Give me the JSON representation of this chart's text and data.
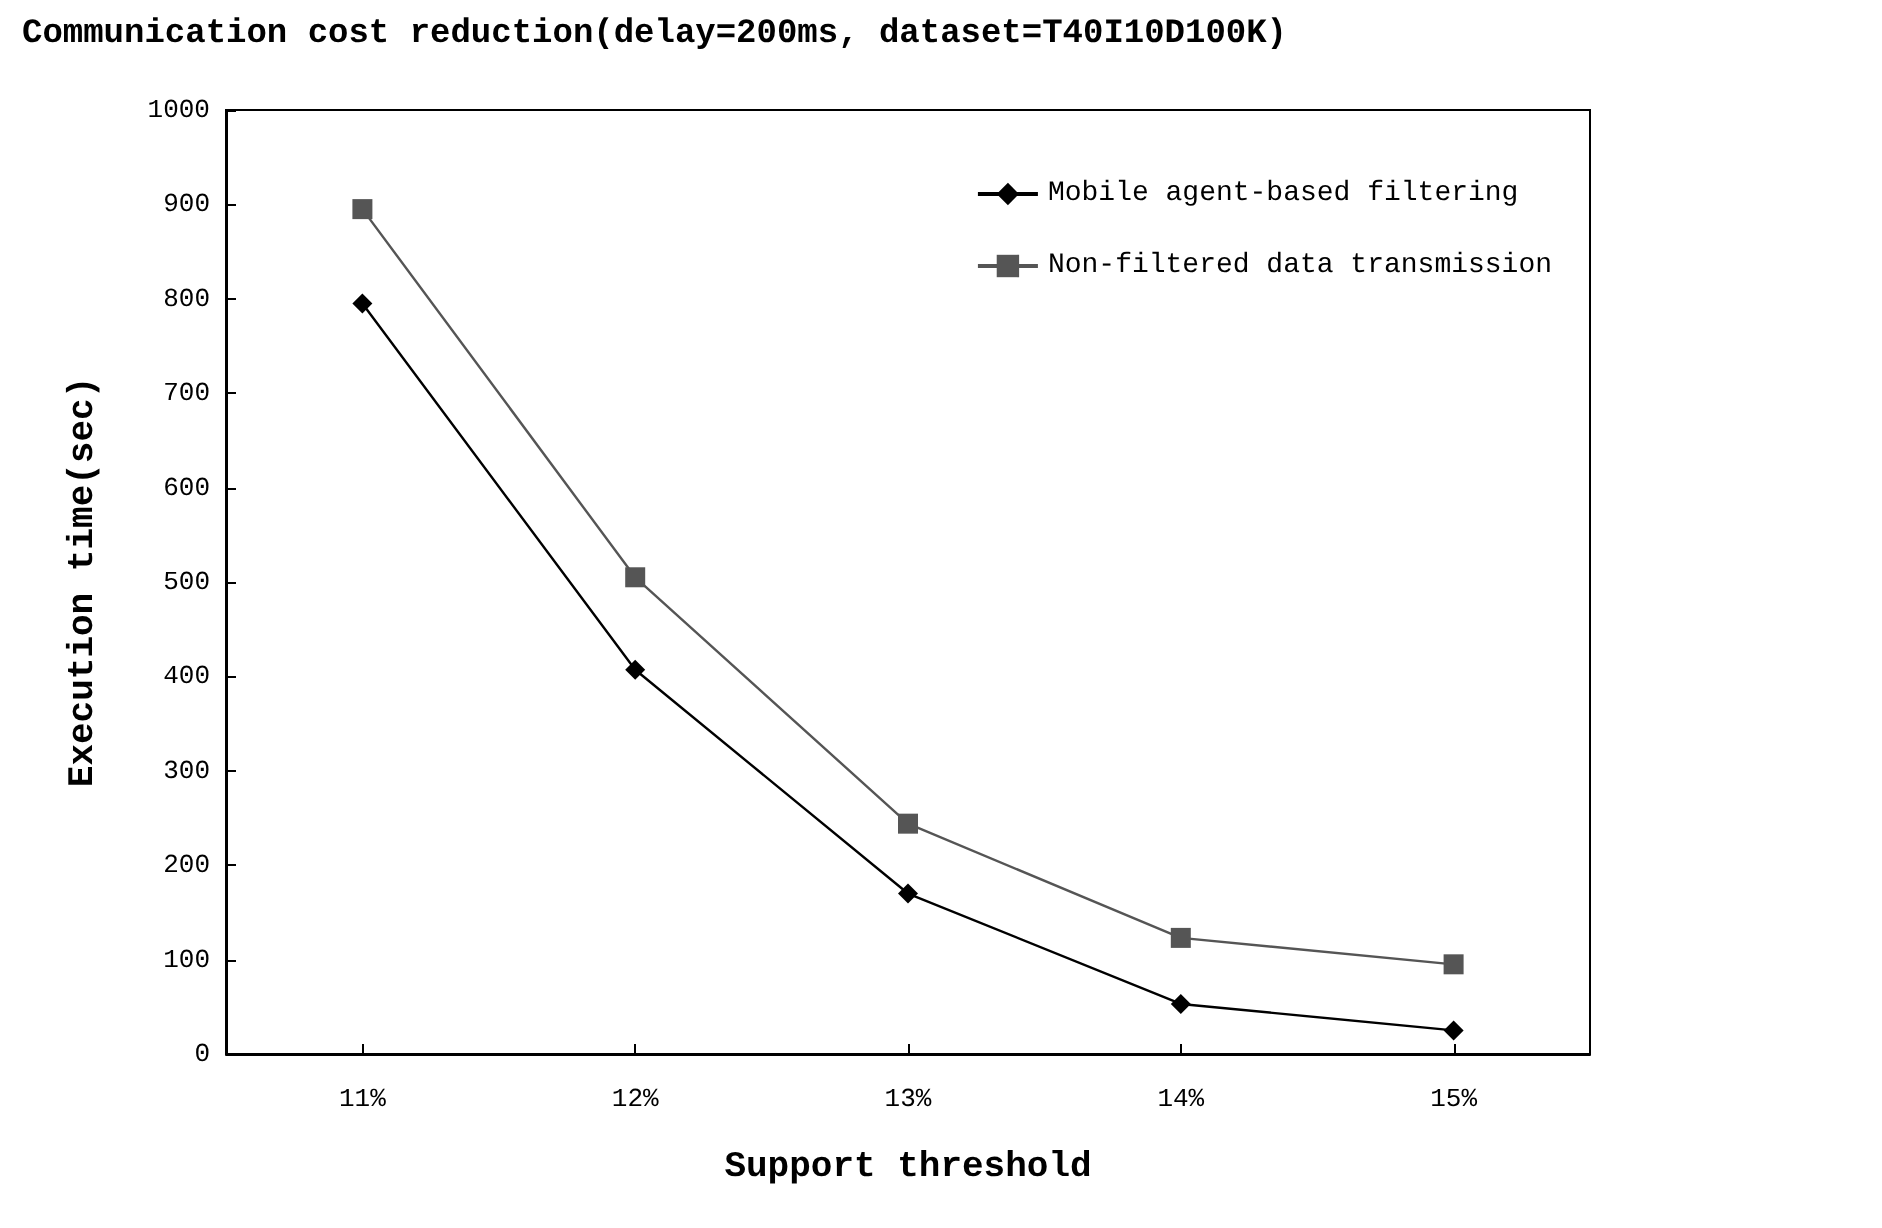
{
  "chart_data": {
    "type": "line",
    "title": "Communication cost reduction(delay=200ms, dataset=T40I10D100K)",
    "xlabel": "Support threshold",
    "ylabel": "Execution time(sec)",
    "categories": [
      "11%",
      "12%",
      "13%",
      "14%",
      "15%"
    ],
    "series": [
      {
        "name": "Mobile agent-based filtering",
        "color": "#000000",
        "marker": "diamond",
        "values": [
          795,
          407,
          170,
          53,
          25
        ]
      },
      {
        "name": "Non-filtered data transmission",
        "color": "#555555",
        "marker": "square",
        "values": [
          895,
          505,
          244,
          123,
          95
        ]
      }
    ],
    "ylim": [
      0,
      1000
    ],
    "yticks": [
      0,
      100,
      200,
      300,
      400,
      500,
      600,
      700,
      800,
      900,
      1000
    ],
    "grid": false,
    "legend": "top right",
    "line_style": "solid"
  }
}
